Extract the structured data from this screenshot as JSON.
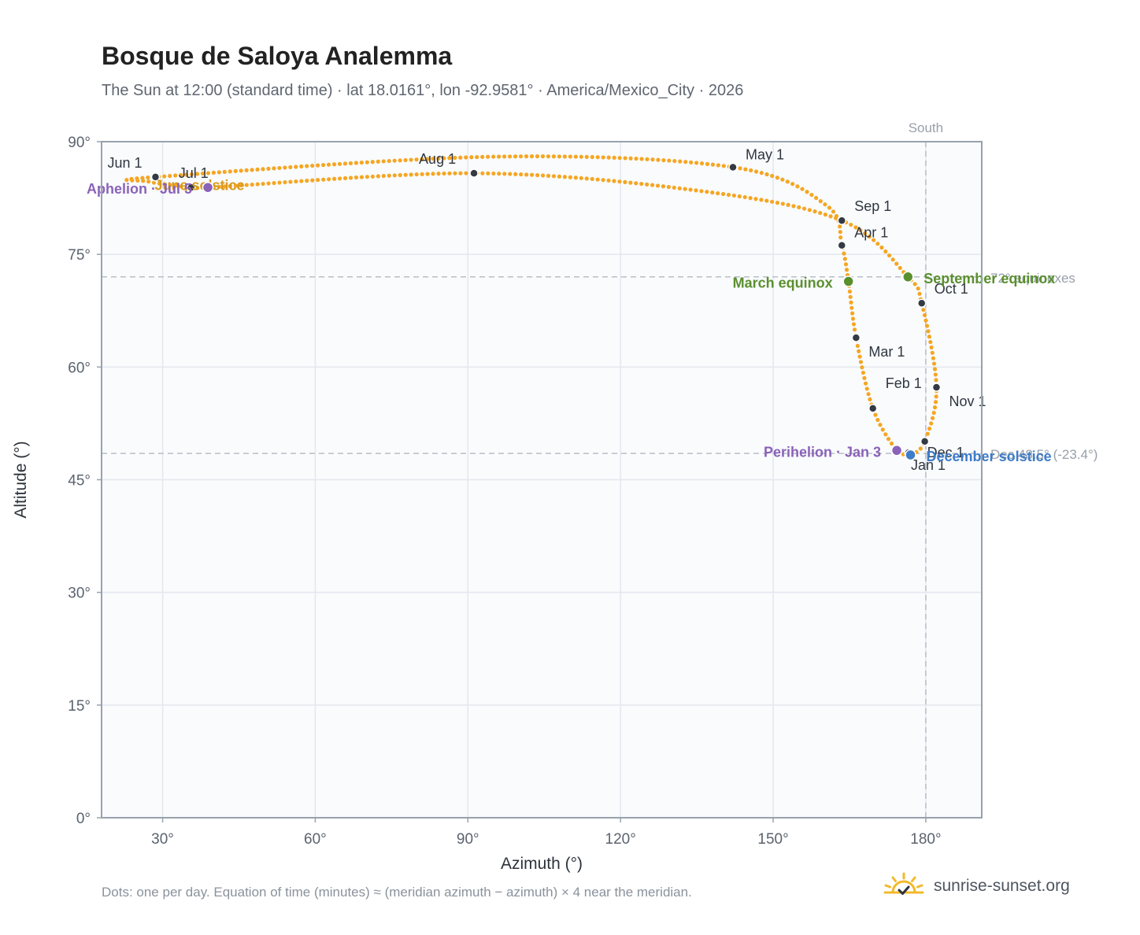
{
  "header": {
    "title": "Bosque de Saloya Analemma",
    "subtitle": "The Sun at 12:00 (standard time) · lat 18.0161°, lon -92.9581° · America/Mexico_City · 2026"
  },
  "footer": {
    "note": "Dots: one per day. Equation of time (minutes) ≈ (meridian azimuth − azimuth) × 4 near the meridian.",
    "brand": "sunrise-sunset.org"
  },
  "colors": {
    "analemma": "#f5a623",
    "month_marker": "#333a44",
    "equinox": "#5a8f2e",
    "solstice_december": "#3d7cc9",
    "solstice_june": "#d99a1f",
    "apsis": "#8a63b8",
    "reference_line": "#b9bfc7",
    "grid": "#e3e8ee",
    "plot_background": "#f9fbfd",
    "axis": "#98a2ad"
  },
  "chart_data": {
    "type": "scatter",
    "xlabel": "Azimuth (°)",
    "ylabel": "Altitude (°)",
    "xlim": [
      18,
      191
    ],
    "ylim": [
      0,
      90
    ],
    "x_ticks": [
      30,
      60,
      90,
      120,
      150,
      180
    ],
    "x_tick_labels": [
      "30°",
      "60°",
      "90°",
      "120°",
      "150°",
      "180°"
    ],
    "y_ticks": [
      0,
      15,
      30,
      45,
      60,
      75,
      90
    ],
    "y_tick_labels": [
      "0°",
      "15°",
      "30°",
      "45°",
      "60°",
      "75°",
      "90°"
    ],
    "grid": true,
    "meridian": {
      "azimuth": 180,
      "label": "South"
    },
    "reference_lines": [
      {
        "altitude": 72.0,
        "label": "72° equinoxes"
      },
      {
        "altitude": 48.5,
        "label": "Dec 48.5° (-23.4°)"
      }
    ],
    "analemma_path": [
      {
        "date": "Jan 1",
        "az": 176.6,
        "alt": 48.6
      },
      {
        "date": "Jan 3",
        "az": 174.3,
        "alt": 48.9
      },
      {
        "date": "Feb 1",
        "az": 169.6,
        "alt": 54.5
      },
      {
        "date": "Mar 1",
        "az": 166.3,
        "alt": 63.9
      },
      {
        "date": "Mar 20",
        "az": 164.8,
        "alt": 71.4
      },
      {
        "date": "Apr 1",
        "az": 163.5,
        "alt": 76.2
      },
      {
        "date": "Apr 15",
        "az": 160.5,
        "alt": 81.5
      },
      {
        "date": "May 1",
        "az": 142.1,
        "alt": 86.6
      },
      {
        "date": "May 15",
        "az": 95.0,
        "alt": 88.0
      },
      {
        "date": "Jun 1",
        "az": 28.6,
        "alt": 85.3
      },
      {
        "date": "Jun 21",
        "az": 27.2,
        "alt": 84.7
      },
      {
        "date": "Jul 1",
        "az": 35.6,
        "alt": 83.9
      },
      {
        "date": "Jul 5",
        "az": 38.9,
        "alt": 83.9
      },
      {
        "date": "Aug 1",
        "az": 91.2,
        "alt": 85.8
      },
      {
        "date": "Aug 15",
        "az": 135.0,
        "alt": 83.5
      },
      {
        "date": "Sep 1",
        "az": 163.5,
        "alt": 79.5
      },
      {
        "date": "Sep 22",
        "az": 176.5,
        "alt": 72.0
      },
      {
        "date": "Oct 1",
        "az": 179.2,
        "alt": 68.5
      },
      {
        "date": "Nov 1",
        "az": 182.1,
        "alt": 57.3
      },
      {
        "date": "Dec 1",
        "az": 179.8,
        "alt": 50.1
      },
      {
        "date": "Dec 21",
        "az": 177.0,
        "alt": 48.3
      },
      {
        "date": "Jan 1",
        "az": 176.6,
        "alt": 48.6
      }
    ],
    "month_markers": [
      {
        "label": "Jan 1",
        "az": 176.6,
        "alt": 48.6
      },
      {
        "label": "Feb 1",
        "az": 169.6,
        "alt": 54.5
      },
      {
        "label": "Mar 1",
        "az": 166.3,
        "alt": 63.9
      },
      {
        "label": "Apr 1",
        "az": 163.5,
        "alt": 76.2
      },
      {
        "label": "May 1",
        "az": 142.1,
        "alt": 86.6
      },
      {
        "label": "Jun 1",
        "az": 28.6,
        "alt": 85.3
      },
      {
        "label": "Jul 1",
        "az": 35.6,
        "alt": 83.9
      },
      {
        "label": "Aug 1",
        "az": 91.2,
        "alt": 85.8
      },
      {
        "label": "Sep 1",
        "az": 163.5,
        "alt": 79.5
      },
      {
        "label": "Oct 1",
        "az": 179.2,
        "alt": 68.5
      },
      {
        "label": "Nov 1",
        "az": 182.1,
        "alt": 57.3
      },
      {
        "label": "Dec 1",
        "az": 179.8,
        "alt": 50.1
      }
    ],
    "events": [
      {
        "label": "March equinox",
        "az": 164.8,
        "alt": 71.4,
        "kind": "equinox"
      },
      {
        "label": "September equinox",
        "az": 176.5,
        "alt": 72.0,
        "kind": "equinox"
      },
      {
        "label": "June solstice",
        "az": 27.2,
        "alt": 84.7,
        "kind": "solstice_june"
      },
      {
        "label": "December solstice",
        "az": 177.0,
        "alt": 48.3,
        "kind": "solstice_december"
      },
      {
        "label": "Perihelion · Jan 3",
        "az": 174.3,
        "alt": 48.9,
        "kind": "apsis"
      },
      {
        "label": "Aphelion · Jul 5",
        "az": 38.9,
        "alt": 83.9,
        "kind": "apsis"
      }
    ]
  }
}
